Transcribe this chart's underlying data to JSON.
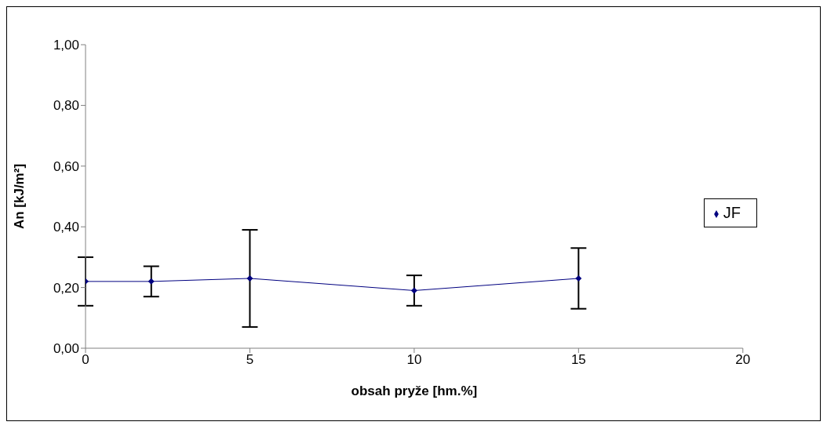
{
  "chart_data": {
    "type": "line",
    "xlabel": "obsah pryže [hm.%]",
    "ylabel": "An [kJ/m²]",
    "x": [
      0,
      2,
      5,
      10,
      15
    ],
    "series": [
      {
        "name": "JF",
        "color": "#000080",
        "values": [
          0.22,
          0.22,
          0.23,
          0.19,
          0.23
        ],
        "errors": [
          0.08,
          0.05,
          0.16,
          0.05,
          0.1
        ]
      }
    ],
    "xlim": [
      0,
      20
    ],
    "xticks": [
      0,
      5,
      10,
      15,
      20
    ],
    "ylim": [
      0,
      1
    ],
    "yticks": [
      {
        "value": 0,
        "label": "0,00"
      },
      {
        "value": 0.2,
        "label": "0,20"
      },
      {
        "value": 0.4,
        "label": "0,40"
      },
      {
        "value": 0.6,
        "label": "0,60"
      },
      {
        "value": 0.8,
        "label": "0,80"
      },
      {
        "value": 1,
        "label": "1,00"
      }
    ],
    "grid": false,
    "legend": "right",
    "marker": "diamond",
    "line_style": "solid"
  }
}
